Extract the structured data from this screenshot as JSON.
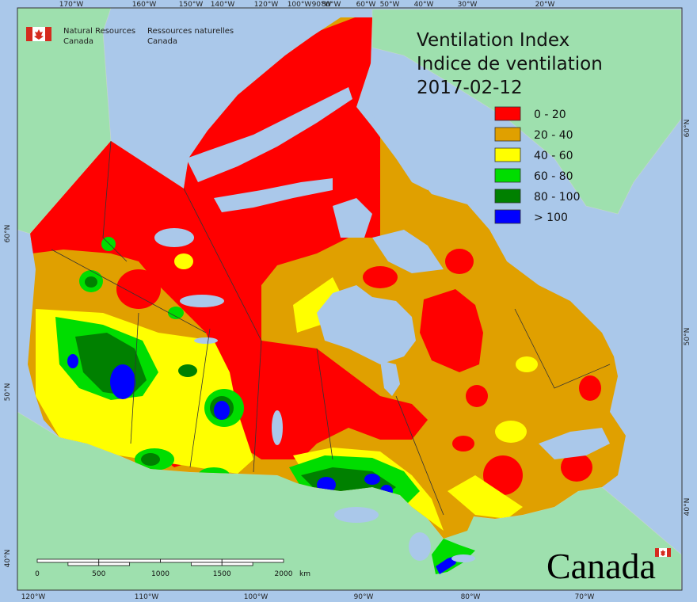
{
  "agency": {
    "name_en": [
      "Natural Resources",
      "Canada"
    ],
    "name_fr": [
      "Ressources naturelles",
      "Canada"
    ]
  },
  "title": {
    "en": "Ventilation Index",
    "fr": "Indice de ventilation",
    "date": "2017-02-12"
  },
  "legend": [
    {
      "label": "0 - 20",
      "color": "#ff0000"
    },
    {
      "label": "20 - 40",
      "color": "#e0a000"
    },
    {
      "label": "40 - 60",
      "color": "#ffff00"
    },
    {
      "label": "60 - 80",
      "color": "#00dd00"
    },
    {
      "label": "80 - 100",
      "color": "#008000"
    },
    {
      "label": "> 100",
      "color": "#0000ff"
    }
  ],
  "graticule": {
    "top": [
      "170°W",
      "160°W",
      "150°W",
      "140°W",
      "120°W",
      "100°W",
      "90°W",
      "80°W",
      "60°W",
      "50°W",
      "40°W",
      "30°W",
      "20°W"
    ],
    "bottom": [
      "120°W",
      "110°W",
      "100°W",
      "90°W",
      "80°W",
      "70°W"
    ],
    "left": [
      "60°N",
      "50°N",
      "40°N"
    ],
    "right": [
      "60°N",
      "50°N",
      "40°N"
    ]
  },
  "scale_bar": {
    "ticks": [
      "0",
      "500",
      "1000",
      "1500",
      "2000"
    ],
    "unit": "km"
  },
  "wordmark": "Canada",
  "colors": {
    "ocean": "#aac8ea",
    "foreign_land": "#9ee0ae"
  }
}
